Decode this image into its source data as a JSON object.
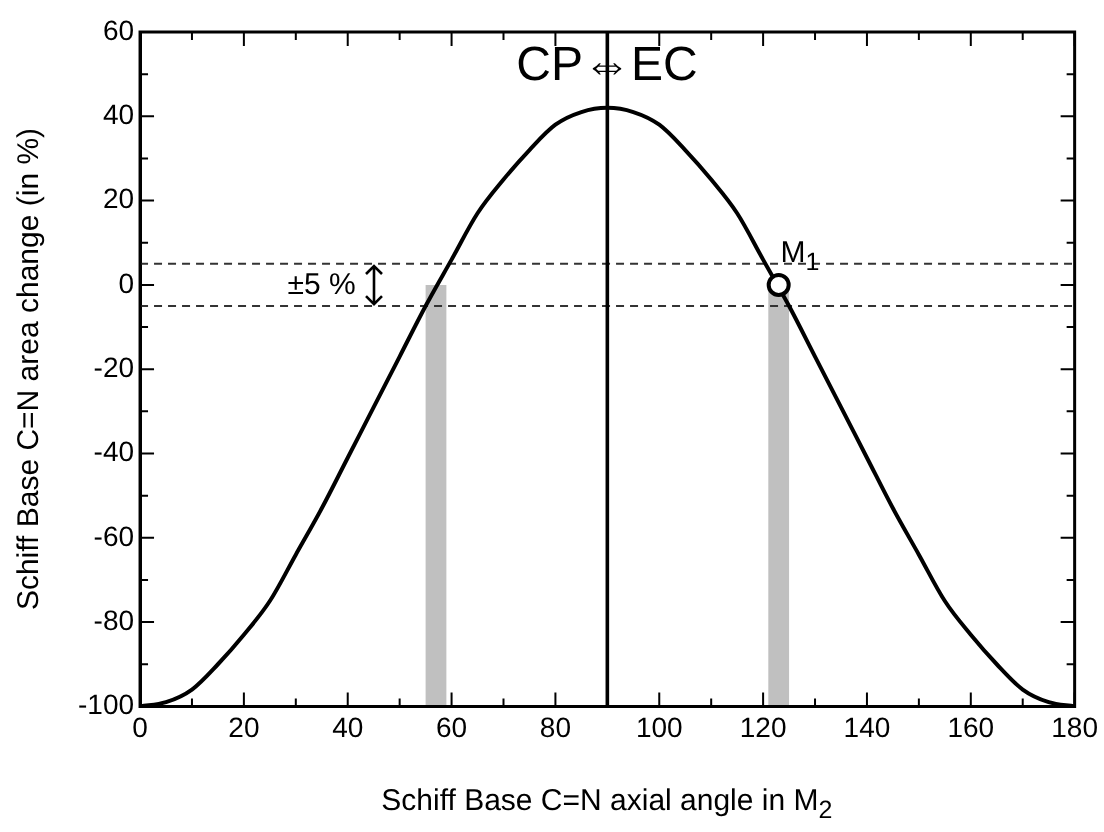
{
  "chart_data": {
    "type": "line",
    "xlabel": "Schiff Base C=N axial angle in M$_{2}$",
    "ylabel": "Schiff Base C=N area change (in %)",
    "xlim": [
      0,
      180
    ],
    "ylim": [
      -100,
      60
    ],
    "xticks": [
      0,
      {
        "value": 10,
        "label": null
      },
      20,
      {
        "value": 30,
        "label": null
      },
      40,
      {
        "value": 50,
        "label": null
      },
      60,
      {
        "value": 70,
        "label": null
      },
      80,
      {
        "value": 90,
        "label": null
      },
      100,
      {
        "value": 110,
        "label": null
      },
      120,
      {
        "value": 130,
        "label": null
      },
      140,
      {
        "value": 150,
        "label": null
      },
      160,
      {
        "value": 170,
        "label": null
      },
      180
    ],
    "yticks": [
      -100,
      {
        "value": -90,
        "label": null
      },
      -80,
      {
        "value": -70,
        "label": null
      },
      -60,
      {
        "value": -50,
        "label": null
      },
      -40,
      {
        "value": -30,
        "label": null
      },
      -20,
      {
        "value": -10,
        "label": null
      },
      0,
      {
        "value": 10,
        "label": null
      },
      20,
      {
        "value": 30,
        "label": null
      },
      40,
      {
        "value": 50,
        "label": null
      },
      60
    ],
    "grid": false,
    "legend": false,
    "marker": "none",
    "series": [
      {
        "color": "#000000",
        "x": [
          0,
          5,
          10,
          15,
          20,
          25,
          30,
          35,
          40,
          45,
          50,
          55,
          60,
          65,
          70,
          75,
          80,
          85,
          90,
          95,
          100,
          105,
          110,
          115,
          120,
          125,
          130,
          135,
          140,
          145,
          150,
          155,
          160,
          165,
          170,
          175,
          180
        ],
        "values": [
          -100,
          -99,
          -96,
          -90,
          -83,
          -75,
          -64,
          -53,
          -41,
          -29,
          -17,
          -5,
          6,
          17,
          25,
          32,
          38,
          41,
          42,
          41,
          38,
          32,
          25,
          17,
          6,
          -5,
          -17,
          -29,
          -41,
          -53,
          -64,
          -75,
          -83,
          -90,
          -96,
          -99,
          -100
        ]
      },
      {
        "type": "scatter",
        "color": "#000000",
        "marker": "circle",
        "x": [
          123
        ],
        "values": [
          0
        ]
      }
    ],
    "ref_lines": [
      {
        "axis": "y",
        "value": 5,
        "color": "#333333",
        "line_style": "dashed"
      },
      {
        "axis": "y",
        "value": -5,
        "color": "#333333",
        "line_style": "dashed"
      },
      {
        "axis": "x",
        "value": 90,
        "color": "#000000",
        "line_style": "solid"
      }
    ],
    "bands": [
      {
        "axis": "x",
        "from": 55,
        "to": 59,
        "color": "#c0c0c0"
      },
      {
        "axis": "x",
        "from": 121,
        "to": 125,
        "color": "#c0c0c0"
      }
    ],
    "annotations": [
      {
        "text": "CP⇔EC",
        "x": 90,
        "y": 51
      },
      {
        "text": "M$_{1}$",
        "x": 127,
        "y": 7
      },
      "±5 %"
    ]
  }
}
